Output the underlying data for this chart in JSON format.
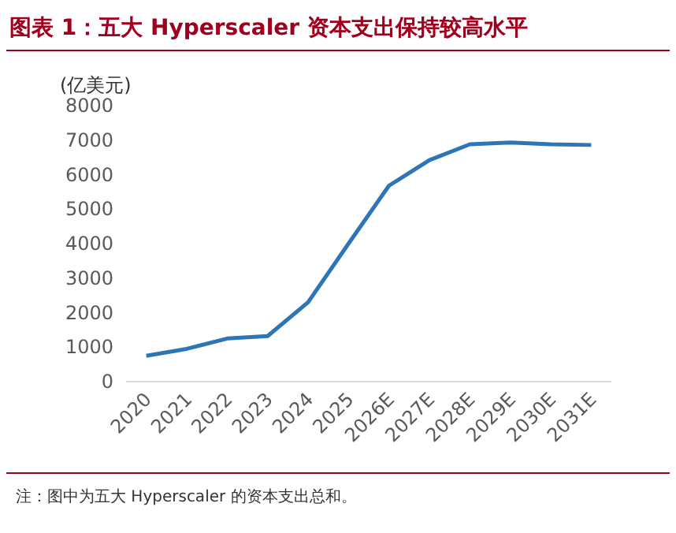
{
  "chart_data": {
    "type": "line",
    "title": "图表 1：五大 Hyperscaler 资本支出保持较高水平",
    "ylabel": "(亿美元)",
    "categories": [
      "2020",
      "2021",
      "2022",
      "2023",
      "2024",
      "2025",
      "2026E",
      "2027E",
      "2028E",
      "2029E",
      "2030E",
      "2031E"
    ],
    "series": [
      {
        "color": "#2e75b6",
        "values": [
          750,
          950,
          1250,
          1320,
          2300,
          4000,
          5680,
          6420,
          6880,
          6930,
          6880,
          6860
        ]
      }
    ],
    "ylim": [
      0,
      8000
    ],
    "yticks": [
      0,
      1000,
      2000,
      3000,
      4000,
      5000,
      6000,
      7000,
      8000
    ],
    "grid": false,
    "marker": "none",
    "line_style": "solid",
    "annotations": [
      "注：图中为五大 Hyperscaler 的资本支出总和。"
    ]
  }
}
